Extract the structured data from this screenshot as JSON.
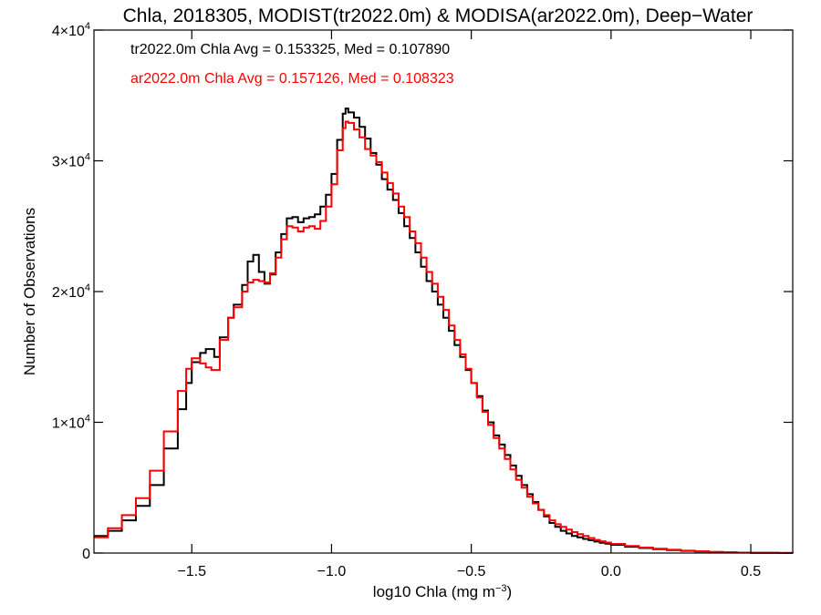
{
  "chart_data": {
    "type": "line",
    "step": true,
    "title": "Chla, 2018305, MODIST(tr2022.0m) & MODISA(ar2022.0m), Deep−Water",
    "xlabel": "log10 Chla (mg m",
    "xlabel_sup": "−3",
    "xlabel_suffix": ")",
    "ylabel": "Number of Observations",
    "xlim": [
      -1.85,
      0.65
    ],
    "ylim": [
      0,
      40000
    ],
    "x_ticks": [
      {
        "value": -1.5,
        "label": "−1.5"
      },
      {
        "value": -1.0,
        "label": "−1.0"
      },
      {
        "value": -0.5,
        "label": "−0.5"
      },
      {
        "value": 0.0,
        "label": "0.0"
      },
      {
        "value": 0.5,
        "label": "0.5"
      }
    ],
    "y_ticks": [
      {
        "value": 0,
        "base": "0",
        "exp": ""
      },
      {
        "value": 10000,
        "base": "1×10",
        "exp": "4"
      },
      {
        "value": 20000,
        "base": "2×10",
        "exp": "4"
      },
      {
        "value": 30000,
        "base": "3×10",
        "exp": "4"
      },
      {
        "value": 40000,
        "base": "4×10",
        "exp": "4"
      }
    ],
    "annotations": [
      {
        "text": "tr2022.0m Chla Avg = 0.153325, Med = 0.107890",
        "color": "#000000"
      },
      {
        "text": "ar2022.0m Chla Avg = 0.157126, Med = 0.108323",
        "color": "#ff0000"
      }
    ],
    "series": [
      {
        "color": "#000000",
        "points": [
          [
            -1.85,
            1300
          ],
          [
            -1.8,
            1700
          ],
          [
            -1.75,
            2500
          ],
          [
            -1.7,
            3600
          ],
          [
            -1.65,
            5200
          ],
          [
            -1.6,
            8000
          ],
          [
            -1.55,
            11000
          ],
          [
            -1.52,
            13000
          ],
          [
            -1.5,
            14600
          ],
          [
            -1.47,
            15300
          ],
          [
            -1.45,
            15600
          ],
          [
            -1.42,
            15000
          ],
          [
            -1.4,
            16500
          ],
          [
            -1.37,
            18000
          ],
          [
            -1.35,
            19000
          ],
          [
            -1.32,
            20500
          ],
          [
            -1.3,
            22300
          ],
          [
            -1.28,
            22800
          ],
          [
            -1.26,
            21500
          ],
          [
            -1.24,
            20600
          ],
          [
            -1.22,
            21300
          ],
          [
            -1.2,
            23000
          ],
          [
            -1.18,
            24400
          ],
          [
            -1.16,
            25600
          ],
          [
            -1.14,
            25700
          ],
          [
            -1.12,
            25300
          ],
          [
            -1.1,
            25600
          ],
          [
            -1.08,
            25700
          ],
          [
            -1.06,
            25900
          ],
          [
            -1.04,
            26500
          ],
          [
            -1.02,
            27400
          ],
          [
            -1.0,
            29000
          ],
          [
            -0.98,
            31600
          ],
          [
            -0.96,
            33600
          ],
          [
            -0.95,
            34000
          ],
          [
            -0.94,
            33700
          ],
          [
            -0.92,
            33300
          ],
          [
            -0.9,
            32600
          ],
          [
            -0.88,
            31700
          ],
          [
            -0.86,
            30600
          ],
          [
            -0.84,
            29700
          ],
          [
            -0.82,
            28600
          ],
          [
            -0.8,
            27800
          ],
          [
            -0.78,
            27000
          ],
          [
            -0.76,
            26000
          ],
          [
            -0.74,
            25000
          ],
          [
            -0.72,
            24100
          ],
          [
            -0.7,
            23000
          ],
          [
            -0.68,
            21900
          ],
          [
            -0.66,
            20800
          ],
          [
            -0.64,
            20000
          ],
          [
            -0.62,
            19000
          ],
          [
            -0.6,
            18000
          ],
          [
            -0.58,
            17000
          ],
          [
            -0.56,
            15900
          ],
          [
            -0.54,
            15000
          ],
          [
            -0.52,
            14000
          ],
          [
            -0.5,
            13000
          ],
          [
            -0.48,
            12000
          ],
          [
            -0.46,
            10900
          ],
          [
            -0.44,
            10000
          ],
          [
            -0.42,
            9000
          ],
          [
            -0.4,
            8300
          ],
          [
            -0.38,
            7500
          ],
          [
            -0.36,
            6700
          ],
          [
            -0.34,
            5900
          ],
          [
            -0.32,
            5200
          ],
          [
            -0.3,
            4500
          ],
          [
            -0.28,
            3900
          ],
          [
            -0.26,
            3300
          ],
          [
            -0.24,
            2800
          ],
          [
            -0.22,
            2300
          ],
          [
            -0.2,
            2000
          ],
          [
            -0.18,
            1700
          ],
          [
            -0.16,
            1500
          ],
          [
            -0.14,
            1300
          ],
          [
            -0.12,
            1200
          ],
          [
            -0.1,
            1080
          ],
          [
            -0.08,
            980
          ],
          [
            -0.06,
            880
          ],
          [
            -0.04,
            790
          ],
          [
            -0.02,
            710
          ],
          [
            0.0,
            630
          ],
          [
            0.05,
            480
          ],
          [
            0.1,
            380
          ],
          [
            0.15,
            300
          ],
          [
            0.2,
            230
          ],
          [
            0.25,
            170
          ],
          [
            0.3,
            120
          ],
          [
            0.35,
            80
          ],
          [
            0.4,
            55
          ],
          [
            0.45,
            35
          ],
          [
            0.5,
            22
          ],
          [
            0.55,
            12
          ],
          [
            0.6,
            6
          ],
          [
            0.65,
            0
          ]
        ]
      },
      {
        "color": "#ff0000",
        "points": [
          [
            -1.85,
            1200
          ],
          [
            -1.8,
            1900
          ],
          [
            -1.75,
            2900
          ],
          [
            -1.7,
            4200
          ],
          [
            -1.65,
            6300
          ],
          [
            -1.6,
            9300
          ],
          [
            -1.55,
            12400
          ],
          [
            -1.52,
            14100
          ],
          [
            -1.5,
            14900
          ],
          [
            -1.47,
            14500
          ],
          [
            -1.45,
            14200
          ],
          [
            -1.43,
            14000
          ],
          [
            -1.4,
            16300
          ],
          [
            -1.37,
            18000
          ],
          [
            -1.35,
            18800
          ],
          [
            -1.32,
            20000
          ],
          [
            -1.3,
            20700
          ],
          [
            -1.28,
            20900
          ],
          [
            -1.26,
            20800
          ],
          [
            -1.24,
            20700
          ],
          [
            -1.22,
            21400
          ],
          [
            -1.2,
            22600
          ],
          [
            -1.18,
            24000
          ],
          [
            -1.16,
            25000
          ],
          [
            -1.14,
            24900
          ],
          [
            -1.12,
            24600
          ],
          [
            -1.1,
            24900
          ],
          [
            -1.08,
            25000
          ],
          [
            -1.06,
            24800
          ],
          [
            -1.04,
            25400
          ],
          [
            -1.02,
            26500
          ],
          [
            -1.0,
            28200
          ],
          [
            -0.98,
            30800
          ],
          [
            -0.96,
            32500
          ],
          [
            -0.95,
            33000
          ],
          [
            -0.94,
            32900
          ],
          [
            -0.92,
            32400
          ],
          [
            -0.9,
            31800
          ],
          [
            -0.88,
            30900
          ],
          [
            -0.86,
            30400
          ],
          [
            -0.84,
            29900
          ],
          [
            -0.82,
            29100
          ],
          [
            -0.8,
            28300
          ],
          [
            -0.78,
            27500
          ],
          [
            -0.76,
            26500
          ],
          [
            -0.74,
            25700
          ],
          [
            -0.72,
            24600
          ],
          [
            -0.7,
            23700
          ],
          [
            -0.68,
            22600
          ],
          [
            -0.66,
            21500
          ],
          [
            -0.64,
            20600
          ],
          [
            -0.62,
            19600
          ],
          [
            -0.6,
            18600
          ],
          [
            -0.58,
            17400
          ],
          [
            -0.56,
            16300
          ],
          [
            -0.54,
            15200
          ],
          [
            -0.52,
            14100
          ],
          [
            -0.5,
            13000
          ],
          [
            -0.48,
            11900
          ],
          [
            -0.46,
            10800
          ],
          [
            -0.44,
            9800
          ],
          [
            -0.42,
            8800
          ],
          [
            -0.4,
            8000
          ],
          [
            -0.38,
            7200
          ],
          [
            -0.36,
            6400
          ],
          [
            -0.34,
            5600
          ],
          [
            -0.32,
            5000
          ],
          [
            -0.3,
            4300
          ],
          [
            -0.28,
            3800
          ],
          [
            -0.26,
            3300
          ],
          [
            -0.24,
            2900
          ],
          [
            -0.22,
            2500
          ],
          [
            -0.2,
            2200
          ],
          [
            -0.18,
            2000
          ],
          [
            -0.16,
            1800
          ],
          [
            -0.14,
            1600
          ],
          [
            -0.12,
            1450
          ],
          [
            -0.1,
            1300
          ],
          [
            -0.08,
            1150
          ],
          [
            -0.06,
            1000
          ],
          [
            -0.04,
            900
          ],
          [
            -0.02,
            800
          ],
          [
            0.0,
            700
          ],
          [
            0.05,
            540
          ],
          [
            0.1,
            420
          ],
          [
            0.15,
            330
          ],
          [
            0.2,
            250
          ],
          [
            0.25,
            180
          ],
          [
            0.3,
            130
          ],
          [
            0.35,
            90
          ],
          [
            0.4,
            60
          ],
          [
            0.45,
            38
          ],
          [
            0.5,
            24
          ],
          [
            0.55,
            13
          ],
          [
            0.6,
            7
          ],
          [
            0.65,
            0
          ]
        ]
      }
    ]
  }
}
